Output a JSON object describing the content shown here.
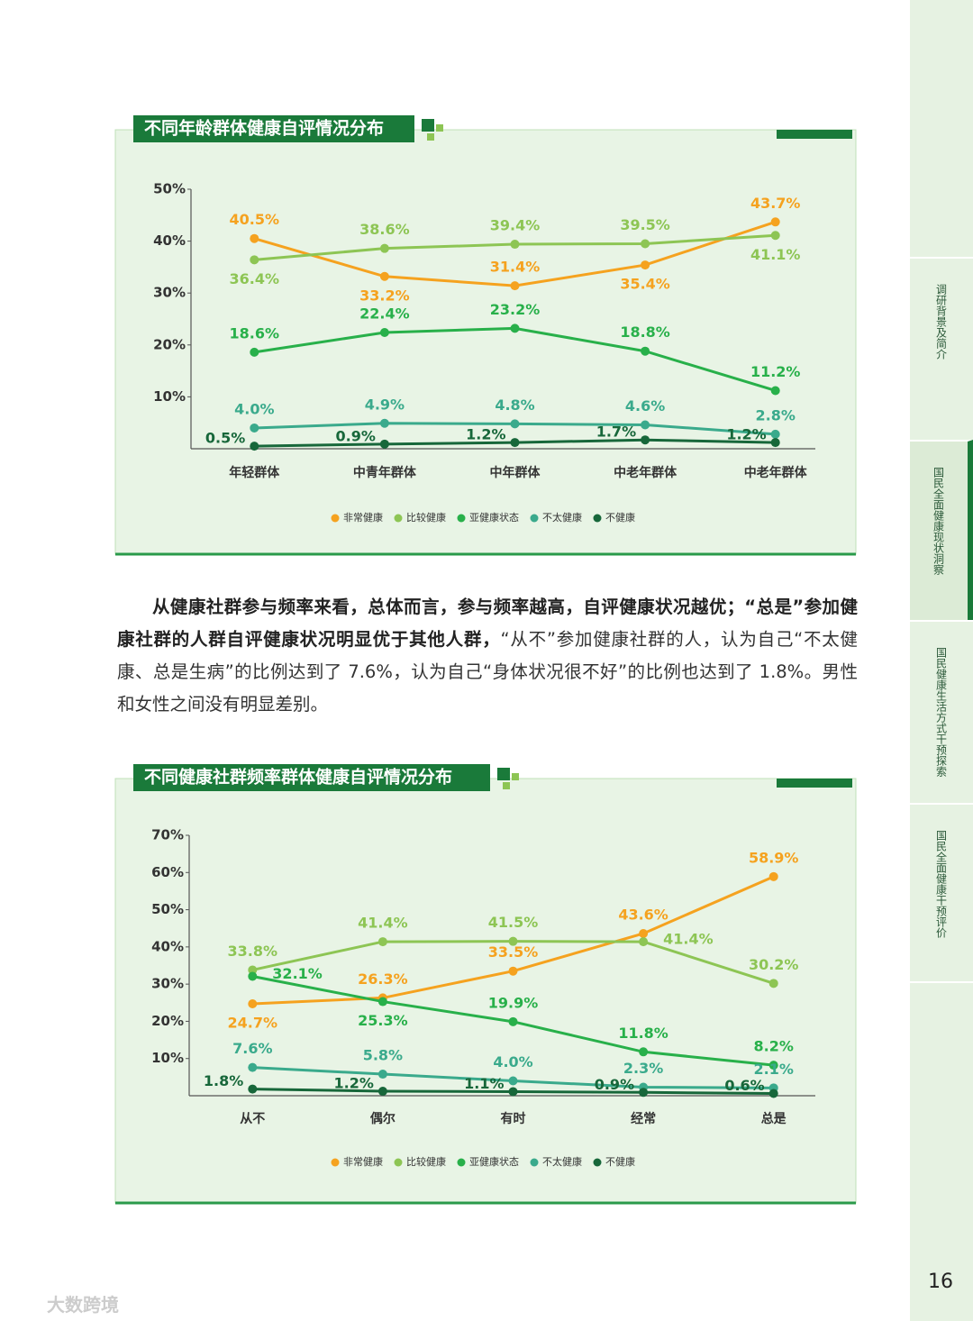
{
  "chart_data": [
    {
      "type": "line",
      "title": "不同年龄群体健康自评情况分布",
      "categories": [
        "年轻群体",
        "中青年群体",
        "中年群体",
        "中老年群体",
        "中老年群体"
      ],
      "ylim": [
        0,
        50
      ],
      "yticks": [
        {
          "value": 10,
          "label": "10%"
        },
        {
          "value": 20,
          "label": "20%"
        },
        {
          "value": 30,
          "label": "30%"
        },
        {
          "value": 40,
          "label": "40%"
        },
        {
          "value": 50,
          "label": "50%"
        }
      ],
      "legend": "bottom",
      "series": [
        {
          "name": "非常健康",
          "color": "#f5a21f",
          "values": [
            40.5,
            33.2,
            31.4,
            35.4,
            43.7
          ],
          "value_labels": [
            "40.5%",
            "33.2%",
            "31.4%",
            "35.4%",
            "43.7%"
          ]
        },
        {
          "name": "比较健康",
          "color": "#8dc554",
          "values": [
            36.4,
            38.6,
            39.4,
            39.5,
            41.1
          ],
          "value_labels": [
            "36.4%",
            "38.6%",
            "39.4%",
            "39.5%",
            "41.1%"
          ]
        },
        {
          "name": "亚健康状态",
          "color": "#28b04a",
          "values": [
            18.6,
            22.4,
            23.2,
            18.8,
            11.2
          ],
          "value_labels": [
            "18.6%",
            "22.4%",
            "23.2%",
            "18.8%",
            "11.2%"
          ]
        },
        {
          "name": "不太健康",
          "color": "#3aaa8c",
          "values": [
            4,
            4.9,
            4.8,
            4.6,
            2.8
          ],
          "value_labels": [
            "4.0%",
            "4.9%",
            "4.8%",
            "4.6%",
            "2.8%"
          ]
        },
        {
          "name": "不健康",
          "color": "#17673a",
          "values": [
            0.5,
            0.9,
            1.2,
            1.7,
            1.2
          ],
          "value_labels": [
            "0.5%",
            "0.9%",
            "1.2%",
            "1.7%",
            "1.2%"
          ]
        }
      ]
    },
    {
      "type": "line",
      "title": "不同健康社群频率群体健康自评情况分布",
      "categories": [
        "从不",
        "偶尔",
        "有时",
        "经常",
        "总是"
      ],
      "ylim": [
        0,
        70
      ],
      "yticks": [
        {
          "value": 10,
          "label": "10%"
        },
        {
          "value": 20,
          "label": "20%"
        },
        {
          "value": 30,
          "label": "30%"
        },
        {
          "value": 40,
          "label": "40%"
        },
        {
          "value": 50,
          "label": "50%"
        },
        {
          "value": 60,
          "label": "60%"
        },
        {
          "value": 70,
          "label": "70%"
        }
      ],
      "legend": "bottom",
      "series": [
        {
          "name": "非常健康",
          "color": "#f5a21f",
          "values": [
            24.7,
            26.3,
            33.5,
            43.6,
            58.9
          ],
          "value_labels": [
            "24.7%",
            "26.3%",
            "33.5%",
            "43.6%",
            "58.9%"
          ]
        },
        {
          "name": "比较健康",
          "color": "#8dc554",
          "values": [
            33.8,
            41.4,
            41.5,
            41.4,
            30.2
          ],
          "value_labels": [
            "33.8%",
            "41.4%",
            "41.5%",
            "41.4%",
            "30.2%"
          ]
        },
        {
          "name": "亚健康状态",
          "color": "#28b04a",
          "values": [
            32.1,
            25.3,
            19.9,
            11.8,
            8.2
          ],
          "value_labels": [
            "32.1%",
            "25.3%",
            "19.9%",
            "11.8%",
            "8.2%"
          ]
        },
        {
          "name": "不太健康",
          "color": "#3aaa8c",
          "values": [
            7.6,
            5.8,
            4,
            2.3,
            2.1
          ],
          "value_labels": [
            "7.6%",
            "5.8%",
            "4.0%",
            "2.3%",
            "2.1%"
          ]
        },
        {
          "name": "不健康",
          "color": "#17673a",
          "values": [
            1.8,
            1.2,
            1.1,
            0.9,
            0.6
          ],
          "value_labels": [
            "1.8%",
            "1.2%",
            "1.1%",
            "0.9%",
            "0.6%"
          ]
        }
      ]
    }
  ],
  "paragraph": {
    "bold": "从健康社群参与频率来看，总体而言，参与频率越高，自评健康状况越优；“总是”参加健康社群的人群自评健康状况明显优于其他人群，",
    "normal": "“从不”参加健康社群的人，认为自己“不太健康、总是生病”的比例达到了 7.6%，认为自己“身体状况很不好”的比例也达到了 1.8%。男性和女性之间没有明显差别。"
  },
  "side_tabs": [
    "调研背景及简介",
    "国民全面健康现状洞察",
    "国民健康生活方式干预探索",
    "国民全面健康干预评价"
  ],
  "page_number": "16",
  "watermark": "大数跨境"
}
